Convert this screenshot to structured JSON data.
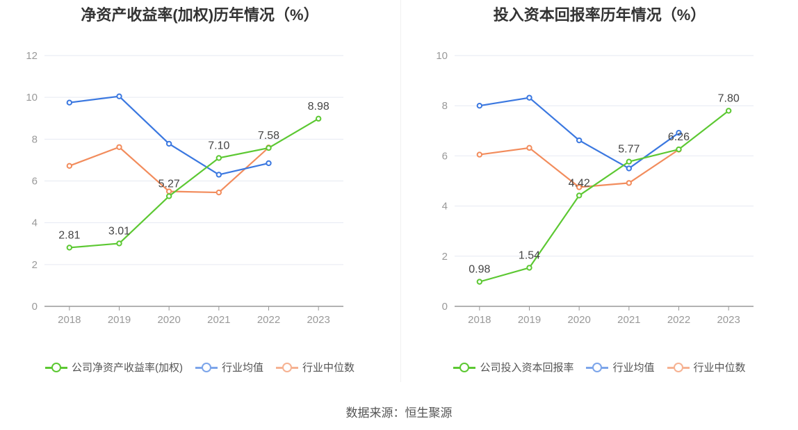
{
  "colors": {
    "company": "#5cc832",
    "avg": "#3b78e0",
    "median": "#f28c5c",
    "grid": "#e6e9f2",
    "axis": "#999999",
    "label": "#444444"
  },
  "chart_data": [
    {
      "type": "line",
      "title": "净资产收益率(加权)历年情况（%）",
      "categories": [
        "2018",
        "2019",
        "2020",
        "2021",
        "2022",
        "2023"
      ],
      "ylim": [
        0,
        12
      ],
      "yticks": [
        "0",
        "2",
        "4",
        "6",
        "8",
        "10",
        "12"
      ],
      "grid": true,
      "legend_position": "bottom",
      "series": [
        {
          "name": "公司净资产收益率(加权)",
          "key": "company",
          "values": [
            2.81,
            3.01,
            5.27,
            7.1,
            7.58,
            8.98
          ],
          "labels": [
            "2.81",
            "3.01",
            "5.27",
            "7.10",
            "7.58",
            "8.98"
          ]
        },
        {
          "name": "行业均值",
          "key": "avg",
          "values": [
            9.75,
            10.05,
            7.78,
            6.3,
            6.85,
            null
          ]
        },
        {
          "name": "行业中位数",
          "key": "median",
          "values": [
            6.72,
            7.62,
            5.5,
            5.45,
            7.6,
            null
          ]
        }
      ]
    },
    {
      "type": "line",
      "title": "投入资本回报率历年情况（%）",
      "categories": [
        "2018",
        "2019",
        "2020",
        "2021",
        "2022",
        "2023"
      ],
      "ylim": [
        0,
        10
      ],
      "yticks": [
        "0",
        "2",
        "4",
        "6",
        "8",
        "10"
      ],
      "grid": true,
      "legend_position": "bottom",
      "series": [
        {
          "name": "公司投入资本回报率",
          "key": "company",
          "values": [
            0.98,
            1.54,
            4.42,
            5.77,
            6.26,
            7.8
          ],
          "labels": [
            "0.98",
            "1.54",
            "4.42",
            "5.77",
            "6.26",
            "7.80"
          ]
        },
        {
          "name": "行业均值",
          "key": "avg",
          "values": [
            8.0,
            8.32,
            6.62,
            5.5,
            6.92,
            null
          ]
        },
        {
          "name": "行业中位数",
          "key": "median",
          "values": [
            6.05,
            6.32,
            4.75,
            4.92,
            6.25,
            null
          ]
        }
      ]
    }
  ],
  "source": "数据来源：恒生聚源"
}
